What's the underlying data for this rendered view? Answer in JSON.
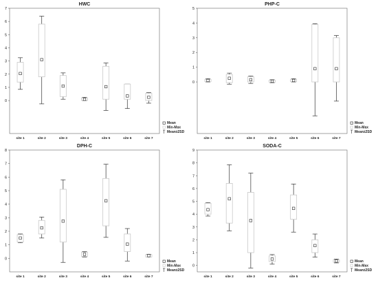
{
  "chart_data": [
    {
      "type": "box",
      "title": "HWC",
      "categories": [
        "site 1",
        "site 2",
        "site 3",
        "site 4",
        "site 5",
        "site 6",
        "site 7"
      ],
      "ylim": [
        -2.5,
        7
      ],
      "yticks": [
        0,
        1,
        2,
        3,
        4,
        5,
        6,
        7
      ],
      "series": [
        {
          "mean": 2.05,
          "box_low": 1.4,
          "box_high": 2.9,
          "whisker_low": 0.85,
          "whisker_high": 3.25
        },
        {
          "mean": 3.1,
          "box_low": 1.8,
          "box_high": 5.8,
          "whisker_low": -0.25,
          "whisker_high": 6.4
        },
        {
          "mean": 1.1,
          "box_low": 0.3,
          "box_high": 1.9,
          "whisker_low": 0.1,
          "whisker_high": 2.1
        },
        {
          "mean": 0.1,
          "box_low": 0.02,
          "box_high": 0.2,
          "whisker_low": 0.0,
          "whisker_high": 0.25
        },
        {
          "mean": 1.05,
          "box_low": 0.1,
          "box_high": 2.6,
          "whisker_low": -0.75,
          "whisker_high": 2.85
        },
        {
          "mean": 0.35,
          "box_low": 0.1,
          "box_high": 1.25,
          "whisker_low": -0.6,
          "whisker_high": 1.25
        },
        {
          "mean": 0.25,
          "box_low": 0.0,
          "box_high": 0.55,
          "whisker_low": -0.2,
          "whisker_high": 0.6
        }
      ],
      "legend": [
        "Mean",
        "Min-Max",
        "Mean±2SD"
      ]
    },
    {
      "type": "box",
      "title": "PHP-C",
      "categories": [
        "site 1",
        "site 2",
        "site 3",
        "site 4",
        "site 5",
        "site 6",
        "site 7"
      ],
      "ylim": [
        -3.5,
        5
      ],
      "yticks": [
        0,
        1,
        2,
        3,
        4,
        5
      ],
      "series": [
        {
          "mean": 0.1,
          "box_low": 0.02,
          "box_high": 0.18,
          "whisker_low": 0.0,
          "whisker_high": 0.22
        },
        {
          "mean": 0.25,
          "box_low": -0.05,
          "box_high": 0.5,
          "whisker_low": -0.15,
          "whisker_high": 0.6
        },
        {
          "mean": 0.15,
          "box_low": 0.0,
          "box_high": 0.35,
          "whisker_low": -0.1,
          "whisker_high": 0.4
        },
        {
          "mean": 0.05,
          "box_low": -0.02,
          "box_high": 0.12,
          "whisker_low": -0.05,
          "whisker_high": 0.15
        },
        {
          "mean": 0.1,
          "box_low": 0.02,
          "box_high": 0.18,
          "whisker_low": 0.0,
          "whisker_high": 0.22
        },
        {
          "mean": 0.9,
          "box_low": 0.0,
          "box_high": 3.9,
          "whisker_low": -2.3,
          "whisker_high": 3.95
        },
        {
          "mean": 0.9,
          "box_low": 0.0,
          "box_high": 3.0,
          "whisker_low": -1.3,
          "whisker_high": 3.15
        }
      ],
      "legend": [
        "Mean",
        "Min-Max",
        "Mean±2SD"
      ]
    },
    {
      "type": "box",
      "title": "DPH-C",
      "categories": [
        "site 1",
        "site 2",
        "site 3",
        "site 4",
        "site 5",
        "site 6",
        "site 7"
      ],
      "ylim": [
        -1,
        8
      ],
      "yticks": [
        0,
        1,
        2,
        3,
        4,
        5,
        6,
        7,
        8
      ],
      "series": [
        {
          "mean": 1.5,
          "box_low": 1.2,
          "box_high": 1.75,
          "whisker_low": 1.15,
          "whisker_high": 1.8
        },
        {
          "mean": 2.25,
          "box_low": 1.8,
          "box_high": 2.8,
          "whisker_low": 1.5,
          "whisker_high": 3.05
        },
        {
          "mean": 2.75,
          "box_low": 1.2,
          "box_high": 5.1,
          "whisker_low": -0.3,
          "whisker_high": 5.8
        },
        {
          "mean": 0.3,
          "box_low": 0.15,
          "box_high": 0.45,
          "whisker_low": 0.1,
          "whisker_high": 0.5
        },
        {
          "mean": 4.25,
          "box_low": 2.4,
          "box_high": 5.9,
          "whisker_low": 1.55,
          "whisker_high": 6.95
        },
        {
          "mean": 1.05,
          "box_low": 0.5,
          "box_high": 1.8,
          "whisker_low": -0.2,
          "whisker_high": 2.2
        },
        {
          "mean": 0.2,
          "box_low": 0.1,
          "box_high": 0.28,
          "whisker_low": 0.1,
          "whisker_high": 0.3
        }
      ],
      "legend": [
        "Mean",
        "Min-Max",
        "Mean±2SD"
      ]
    },
    {
      "type": "box",
      "title": "SODA-C",
      "categories": [
        "site 1",
        "site 2",
        "site 3",
        "site 4",
        "site 5",
        "site 6",
        "site 7"
      ],
      "ylim": [
        -0.5,
        9
      ],
      "yticks": [
        0,
        1,
        2,
        3,
        4,
        5,
        6,
        7,
        8,
        9
      ],
      "series": [
        {
          "mean": 4.35,
          "box_low": 4.0,
          "box_high": 4.85,
          "whisker_low": 3.85,
          "whisker_high": 4.9
        },
        {
          "mean": 5.2,
          "box_low": 3.3,
          "box_high": 6.4,
          "whisker_low": 2.7,
          "whisker_high": 7.85
        },
        {
          "mean": 3.5,
          "box_low": 1.0,
          "box_high": 5.7,
          "whisker_low": -0.2,
          "whisker_high": 7.2
        },
        {
          "mean": 0.5,
          "box_low": 0.3,
          "box_high": 0.75,
          "whisker_low": 0.1,
          "whisker_high": 0.85
        },
        {
          "mean": 4.45,
          "box_low": 3.6,
          "box_high": 5.5,
          "whisker_low": 2.6,
          "whisker_high": 6.35
        },
        {
          "mean": 1.55,
          "box_low": 1.0,
          "box_high": 2.0,
          "whisker_low": 0.65,
          "whisker_high": 2.45
        },
        {
          "mean": 0.35,
          "box_low": 0.25,
          "box_high": 0.45,
          "whisker_low": 0.2,
          "whisker_high": 0.5
        }
      ],
      "legend": [
        "Mean",
        "Min-Max",
        "Mean±2SD"
      ]
    }
  ]
}
